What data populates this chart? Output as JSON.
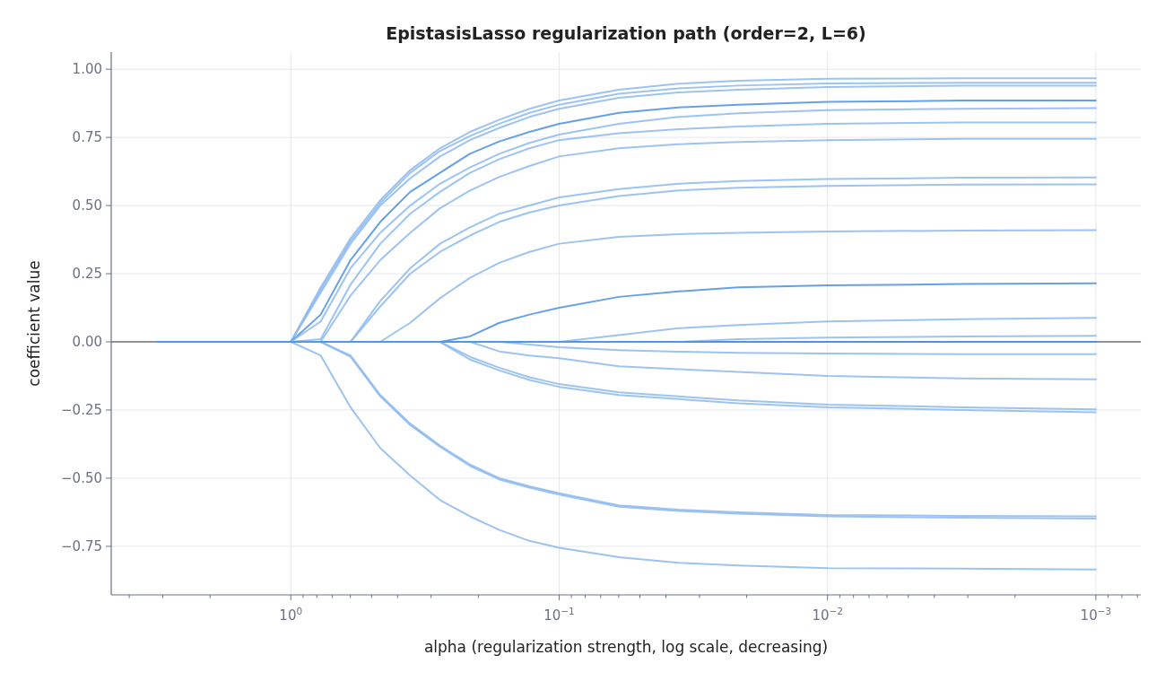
{
  "chart_data": {
    "type": "line",
    "title": "EpistasisLasso regularization path (order=2, L=6)",
    "xlabel": "alpha (regularization strength, log scale, decreasing)",
    "ylabel": "coefficient value",
    "log": "x",
    "grid": true,
    "marker": "none",
    "line_style": "solid",
    "xlim": [
      4.67,
      0.00068
    ],
    "ylim": [
      -0.928,
      1.063
    ],
    "xticks": [
      {
        "value": 4,
        "label": null
      },
      {
        "value": 3,
        "label": null
      },
      {
        "value": 2,
        "label": null
      },
      {
        "value": 1,
        "label": "10$^{0}$"
      },
      {
        "value": 0.9,
        "label": null
      },
      {
        "value": 0.8,
        "label": null
      },
      {
        "value": 0.7,
        "label": null
      },
      {
        "value": 0.6,
        "label": null
      },
      {
        "value": 0.5,
        "label": null
      },
      {
        "value": 0.4,
        "label": null
      },
      {
        "value": 0.3,
        "label": null
      },
      {
        "value": 0.2,
        "label": null
      },
      {
        "value": 0.1,
        "label": "10$^{−1}$"
      },
      {
        "value": 0.09,
        "label": null
      },
      {
        "value": 0.08,
        "label": null
      },
      {
        "value": 0.07,
        "label": null
      },
      {
        "value": 0.06,
        "label": null
      },
      {
        "value": 0.05,
        "label": null
      },
      {
        "value": 0.04,
        "label": null
      },
      {
        "value": 0.03,
        "label": null
      },
      {
        "value": 0.02,
        "label": null
      },
      {
        "value": 0.01,
        "label": "10$^{−2}$"
      },
      {
        "value": 0.009,
        "label": null
      },
      {
        "value": 0.008,
        "label": null
      },
      {
        "value": 0.007,
        "label": null
      },
      {
        "value": 0.006,
        "label": null
      },
      {
        "value": 0.005,
        "label": null
      },
      {
        "value": 0.004,
        "label": null
      },
      {
        "value": 0.003,
        "label": null
      },
      {
        "value": 0.002,
        "label": null
      },
      {
        "value": 0.001,
        "label": "10$^{−3}$"
      },
      {
        "value": 0.0009,
        "label": null
      },
      {
        "value": 0.0008,
        "label": null
      },
      {
        "value": 0.0007,
        "label": null
      }
    ],
    "yticks": [
      {
        "value": -0.75,
        "label": "−0.75"
      },
      {
        "value": -0.5,
        "label": "−0.50"
      },
      {
        "value": -0.25,
        "label": "−0.25"
      },
      {
        "value": 0,
        "label": "0.00"
      },
      {
        "value": 0.25,
        "label": "0.25"
      },
      {
        "value": 0.5,
        "label": "0.50"
      },
      {
        "value": 0.75,
        "label": "0.75"
      },
      {
        "value": 1,
        "label": "1.00"
      }
    ],
    "ref_lines": [
      {
        "axis": "y",
        "value": 0,
        "color": "#6b7280"
      }
    ],
    "x": [
      3.16,
      1,
      0.774,
      0.599,
      0.464,
      0.359,
      0.278,
      0.215,
      0.167,
      0.129,
      0.1,
      0.0599,
      0.0359,
      0.0215,
      0.01,
      0.00316,
      0.001
    ],
    "series": [
      {
        "color": "#8cb9ee",
        "values": [
          0,
          0,
          0.2,
          0.38,
          0.52,
          0.63,
          0.71,
          0.77,
          0.815,
          0.855,
          0.885,
          0.925,
          0.947,
          0.958,
          0.965,
          0.967,
          0.967
        ]
      },
      {
        "color": "#8cb9ee",
        "values": [
          0,
          0,
          0.19,
          0.37,
          0.51,
          0.62,
          0.7,
          0.755,
          0.8,
          0.84,
          0.87,
          0.91,
          0.93,
          0.94,
          0.948,
          0.95,
          0.95
        ]
      },
      {
        "color": "#8cb9ee",
        "values": [
          0,
          0,
          0.18,
          0.36,
          0.5,
          0.6,
          0.68,
          0.74,
          0.785,
          0.825,
          0.855,
          0.895,
          0.915,
          0.925,
          0.935,
          0.94,
          0.94
        ]
      },
      {
        "color": "#4a90e2",
        "values": [
          0,
          0,
          0.1,
          0.3,
          0.44,
          0.55,
          0.62,
          0.69,
          0.735,
          0.77,
          0.8,
          0.84,
          0.86,
          0.87,
          0.88,
          0.885,
          0.885
        ]
      },
      {
        "color": "#8cb9ee",
        "values": [
          0,
          0,
          0.075,
          0.27,
          0.4,
          0.5,
          0.58,
          0.64,
          0.69,
          0.73,
          0.76,
          0.8,
          0.825,
          0.838,
          0.85,
          0.855,
          0.857
        ]
      },
      {
        "color": "#8cb9ee",
        "values": [
          0,
          0,
          0.01,
          0.21,
          0.36,
          0.47,
          0.55,
          0.62,
          0.67,
          0.71,
          0.74,
          0.765,
          0.78,
          0.79,
          0.8,
          0.805,
          0.805
        ]
      },
      {
        "color": "#8cb9ee",
        "values": [
          0,
          0,
          0,
          0.17,
          0.3,
          0.4,
          0.49,
          0.555,
          0.605,
          0.645,
          0.68,
          0.71,
          0.725,
          0.733,
          0.74,
          0.745,
          0.745
        ]
      },
      {
        "color": "#8cb9ee",
        "values": [
          0,
          0,
          0,
          0,
          0.15,
          0.27,
          0.36,
          0.42,
          0.47,
          0.5,
          0.53,
          0.56,
          0.58,
          0.59,
          0.597,
          0.602,
          0.603
        ]
      },
      {
        "color": "#8cb9ee",
        "values": [
          0,
          0,
          0,
          0,
          0.13,
          0.25,
          0.33,
          0.39,
          0.44,
          0.475,
          0.5,
          0.535,
          0.555,
          0.565,
          0.572,
          0.577,
          0.578
        ]
      },
      {
        "color": "#8cb9ee",
        "values": [
          0,
          0,
          0,
          0,
          0,
          0.07,
          0.16,
          0.235,
          0.29,
          0.33,
          0.36,
          0.385,
          0.395,
          0.4,
          0.405,
          0.408,
          0.41
        ]
      },
      {
        "color": "#4a90e2",
        "values": [
          0,
          0,
          0,
          0,
          0,
          0,
          0,
          0.02,
          0.07,
          0.1,
          0.125,
          0.165,
          0.185,
          0.2,
          0.207,
          0.212,
          0.215
        ]
      },
      {
        "color": "#8cb9ee",
        "values": [
          0,
          0,
          0,
          0,
          0,
          0,
          0,
          0,
          0,
          0,
          0,
          0.025,
          0.05,
          0.062,
          0.075,
          0.083,
          0.088
        ]
      },
      {
        "color": "#8cb9ee",
        "values": [
          0,
          0,
          0,
          0,
          0,
          0,
          0,
          0,
          0,
          0,
          0,
          0,
          0,
          0.01,
          0.016,
          0.02,
          0.022
        ]
      },
      {
        "color": "#8cb9ee",
        "values": [
          0,
          0,
          0,
          0,
          0,
          0,
          0,
          0,
          0,
          -0.01,
          -0.02,
          -0.03,
          -0.036,
          -0.04,
          -0.043,
          -0.045,
          -0.045
        ]
      },
      {
        "color": "#8cb9ee",
        "values": [
          0,
          0,
          0,
          0,
          0,
          0,
          0,
          0,
          -0.035,
          -0.05,
          -0.06,
          -0.09,
          -0.1,
          -0.11,
          -0.125,
          -0.134,
          -0.137
        ]
      },
      {
        "color": "#8cb9ee",
        "values": [
          0,
          0,
          0,
          0,
          0,
          0,
          0,
          -0.055,
          -0.095,
          -0.13,
          -0.155,
          -0.185,
          -0.2,
          -0.215,
          -0.23,
          -0.24,
          -0.248
        ]
      },
      {
        "color": "#8cb9ee",
        "values": [
          0,
          0,
          0,
          0,
          0,
          0,
          0,
          -0.065,
          -0.105,
          -0.14,
          -0.165,
          -0.195,
          -0.21,
          -0.225,
          -0.24,
          -0.25,
          -0.258
        ]
      },
      {
        "color": "#8cb9ee",
        "values": [
          0,
          0,
          0,
          -0.05,
          -0.195,
          -0.3,
          -0.38,
          -0.45,
          -0.5,
          -0.53,
          -0.555,
          -0.6,
          -0.615,
          -0.625,
          -0.635,
          -0.638,
          -0.64
        ]
      },
      {
        "color": "#8cb9ee",
        "values": [
          0,
          0,
          0,
          -0.055,
          -0.2,
          -0.305,
          -0.385,
          -0.455,
          -0.505,
          -0.535,
          -0.56,
          -0.605,
          -0.62,
          -0.63,
          -0.64,
          -0.645,
          -0.648
        ]
      },
      {
        "color": "#8cb9ee",
        "values": [
          0,
          0,
          -0.05,
          -0.24,
          -0.39,
          -0.49,
          -0.58,
          -0.64,
          -0.69,
          -0.73,
          -0.755,
          -0.79,
          -0.81,
          -0.82,
          -0.83,
          -0.832,
          -0.835
        ]
      },
      {
        "color": "#4a90e2",
        "values": [
          0,
          0,
          0,
          0,
          0,
          0,
          0,
          0,
          0,
          0,
          0,
          0,
          0,
          0,
          0,
          0,
          0
        ]
      }
    ]
  }
}
